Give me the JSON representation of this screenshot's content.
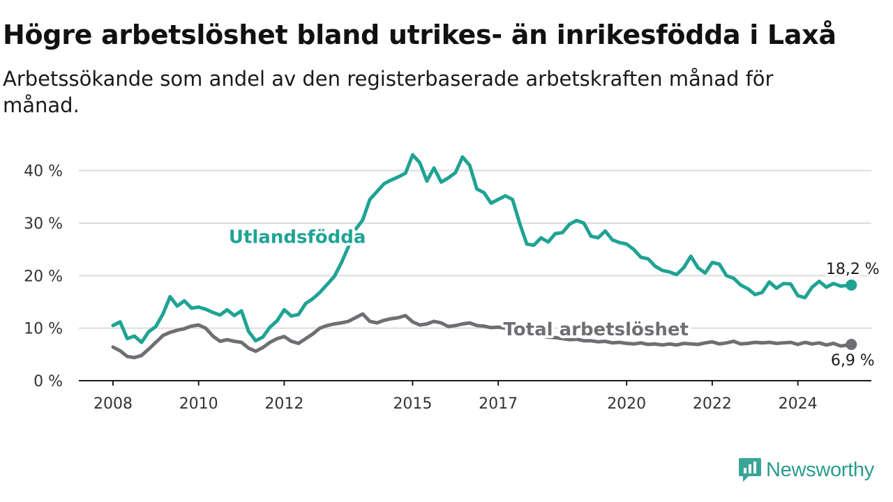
{
  "header": {
    "title": "Högre arbetslöshet bland utrikes- än inrikesfödda i Laxå",
    "subtitle": "Arbetssökande som andel av den registerbaserade arbetskraften månad för månad."
  },
  "brand": {
    "name": "Newsworthy",
    "color": "#2a9c8c"
  },
  "chart_data": {
    "type": "line",
    "x_label": "",
    "y_label": "",
    "xlim": [
      "2008-01",
      "2025-04"
    ],
    "ylim": [
      0,
      45
    ],
    "y_ticks": [
      0,
      10,
      20,
      30,
      40
    ],
    "y_tick_labels": [
      "0 %",
      "10 %",
      "20 %",
      "30 %",
      "40 %"
    ],
    "x_ticks": [
      "2008-01",
      "2010-01",
      "2012-01",
      "2015-01",
      "2017-01",
      "2020-01",
      "2022-01",
      "2024-01"
    ],
    "x_tick_labels": [
      "2008",
      "2010",
      "2012",
      "2015",
      "2017",
      "2020",
      "2022",
      "2024"
    ],
    "grid": "horizontal",
    "series": [
      {
        "name": "Utlandsfödda",
        "color": "#1fa394",
        "label_at": {
          "x": "2012-05",
          "y": 26.2
        },
        "last_value_label": "18,2 %",
        "points": [
          [
            "2008-01",
            10.5
          ],
          [
            "2008-03",
            11.2
          ],
          [
            "2008-05",
            8.0
          ],
          [
            "2008-07",
            8.5
          ],
          [
            "2008-09",
            7.3
          ],
          [
            "2008-11",
            9.3
          ],
          [
            "2009-01",
            10.3
          ],
          [
            "2009-03",
            12.7
          ],
          [
            "2009-05",
            16.0
          ],
          [
            "2009-07",
            14.2
          ],
          [
            "2009-09",
            15.2
          ],
          [
            "2009-11",
            13.8
          ],
          [
            "2010-01",
            14.0
          ],
          [
            "2010-03",
            13.6
          ],
          [
            "2010-05",
            13.0
          ],
          [
            "2010-07",
            12.5
          ],
          [
            "2010-09",
            13.5
          ],
          [
            "2010-11",
            12.4
          ],
          [
            "2011-01",
            13.3
          ],
          [
            "2011-03",
            9.4
          ],
          [
            "2011-05",
            7.6
          ],
          [
            "2011-07",
            8.3
          ],
          [
            "2011-09",
            10.2
          ],
          [
            "2011-11",
            11.4
          ],
          [
            "2012-01",
            13.5
          ],
          [
            "2012-03",
            12.3
          ],
          [
            "2012-05",
            12.6
          ],
          [
            "2012-07",
            14.7
          ],
          [
            "2012-09",
            15.6
          ],
          [
            "2012-11",
            16.8
          ],
          [
            "2013-01",
            18.3
          ],
          [
            "2013-03",
            19.8
          ],
          [
            "2013-05",
            22.4
          ],
          [
            "2013-07",
            25.5
          ],
          [
            "2013-09",
            28.8
          ],
          [
            "2013-11",
            30.6
          ],
          [
            "2014-01",
            34.5
          ],
          [
            "2014-03",
            36.0
          ],
          [
            "2014-05",
            37.5
          ],
          [
            "2014-07",
            38.2
          ],
          [
            "2014-09",
            38.8
          ],
          [
            "2014-11",
            39.5
          ],
          [
            "2015-01",
            43.0
          ],
          [
            "2015-03",
            41.5
          ],
          [
            "2015-05",
            38.0
          ],
          [
            "2015-07",
            40.5
          ],
          [
            "2015-09",
            37.8
          ],
          [
            "2015-11",
            38.6
          ],
          [
            "2016-01",
            39.6
          ],
          [
            "2016-03",
            42.6
          ],
          [
            "2016-05",
            41.0
          ],
          [
            "2016-07",
            36.5
          ],
          [
            "2016-09",
            35.8
          ],
          [
            "2016-11",
            33.8
          ],
          [
            "2017-01",
            34.5
          ],
          [
            "2017-03",
            35.2
          ],
          [
            "2017-05",
            34.5
          ],
          [
            "2017-07",
            30.0
          ],
          [
            "2017-09",
            26.0
          ],
          [
            "2017-11",
            25.8
          ],
          [
            "2018-01",
            27.2
          ],
          [
            "2018-03",
            26.4
          ],
          [
            "2018-05",
            28.0
          ],
          [
            "2018-07",
            28.2
          ],
          [
            "2018-09",
            29.8
          ],
          [
            "2018-11",
            30.5
          ],
          [
            "2019-01",
            30.0
          ],
          [
            "2019-03",
            27.5
          ],
          [
            "2019-05",
            27.2
          ],
          [
            "2019-07",
            28.5
          ],
          [
            "2019-09",
            26.8
          ],
          [
            "2019-11",
            26.3
          ],
          [
            "2020-01",
            26.0
          ],
          [
            "2020-03",
            25.0
          ],
          [
            "2020-05",
            23.5
          ],
          [
            "2020-07",
            23.2
          ],
          [
            "2020-09",
            21.8
          ],
          [
            "2020-11",
            21.0
          ],
          [
            "2021-01",
            20.7
          ],
          [
            "2021-03",
            20.2
          ],
          [
            "2021-05",
            21.5
          ],
          [
            "2021-07",
            23.7
          ],
          [
            "2021-09",
            21.5
          ],
          [
            "2021-11",
            20.5
          ],
          [
            "2022-01",
            22.5
          ],
          [
            "2022-03",
            22.2
          ],
          [
            "2022-05",
            20.0
          ],
          [
            "2022-07",
            19.5
          ],
          [
            "2022-09",
            18.2
          ],
          [
            "2022-11",
            17.5
          ],
          [
            "2023-01",
            16.4
          ],
          [
            "2023-03",
            16.8
          ],
          [
            "2023-05",
            18.8
          ],
          [
            "2023-07",
            17.6
          ],
          [
            "2023-09",
            18.5
          ],
          [
            "2023-11",
            18.4
          ],
          [
            "2024-01",
            16.2
          ],
          [
            "2024-03",
            15.8
          ],
          [
            "2024-05",
            17.8
          ],
          [
            "2024-07",
            18.9
          ],
          [
            "2024-09",
            17.8
          ],
          [
            "2024-11",
            18.5
          ],
          [
            "2025-01",
            18.0
          ],
          [
            "2025-04",
            18.2
          ]
        ]
      },
      {
        "name": "Total arbetslöshet",
        "color": "#6e6e73",
        "label_at": {
          "x": "2018-10",
          "y": 8.6
        },
        "last_value_label": "6,9 %",
        "points": [
          [
            "2008-01",
            6.4
          ],
          [
            "2008-03",
            5.7
          ],
          [
            "2008-05",
            4.6
          ],
          [
            "2008-07",
            4.4
          ],
          [
            "2008-09",
            4.8
          ],
          [
            "2008-11",
            6.0
          ],
          [
            "2009-01",
            7.3
          ],
          [
            "2009-03",
            8.6
          ],
          [
            "2009-05",
            9.2
          ],
          [
            "2009-07",
            9.6
          ],
          [
            "2009-09",
            9.9
          ],
          [
            "2009-11",
            10.4
          ],
          [
            "2010-01",
            10.6
          ],
          [
            "2010-03",
            10.0
          ],
          [
            "2010-05",
            8.5
          ],
          [
            "2010-07",
            7.5
          ],
          [
            "2010-09",
            7.8
          ],
          [
            "2010-11",
            7.5
          ],
          [
            "2011-01",
            7.3
          ],
          [
            "2011-03",
            6.2
          ],
          [
            "2011-05",
            5.6
          ],
          [
            "2011-07",
            6.3
          ],
          [
            "2011-09",
            7.3
          ],
          [
            "2011-11",
            8.0
          ],
          [
            "2012-01",
            8.4
          ],
          [
            "2012-03",
            7.5
          ],
          [
            "2012-05",
            7.1
          ],
          [
            "2012-07",
            8.0
          ],
          [
            "2012-09",
            8.9
          ],
          [
            "2012-11",
            10.0
          ],
          [
            "2013-01",
            10.5
          ],
          [
            "2013-03",
            10.8
          ],
          [
            "2013-05",
            11.0
          ],
          [
            "2013-07",
            11.3
          ],
          [
            "2013-09",
            12.0
          ],
          [
            "2013-11",
            12.7
          ],
          [
            "2014-01",
            11.3
          ],
          [
            "2014-03",
            11.0
          ],
          [
            "2014-05",
            11.5
          ],
          [
            "2014-07",
            11.8
          ],
          [
            "2014-09",
            12.0
          ],
          [
            "2014-11",
            12.4
          ],
          [
            "2015-01",
            11.2
          ],
          [
            "2015-03",
            10.6
          ],
          [
            "2015-05",
            10.8
          ],
          [
            "2015-07",
            11.3
          ],
          [
            "2015-09",
            11.0
          ],
          [
            "2015-11",
            10.3
          ],
          [
            "2016-01",
            10.5
          ],
          [
            "2016-03",
            10.8
          ],
          [
            "2016-05",
            11.0
          ],
          [
            "2016-07",
            10.5
          ],
          [
            "2016-09",
            10.4
          ],
          [
            "2016-11",
            10.1
          ],
          [
            "2017-01",
            10.2
          ],
          [
            "2017-03",
            10.0
          ],
          [
            "2017-05",
            9.8
          ],
          [
            "2017-07",
            9.5
          ],
          [
            "2017-09",
            9.0
          ],
          [
            "2017-11",
            8.8
          ],
          [
            "2018-01",
            8.5
          ],
          [
            "2018-03",
            8.3
          ],
          [
            "2018-05",
            8.2
          ],
          [
            "2018-07",
            8.0
          ],
          [
            "2018-09",
            7.8
          ],
          [
            "2018-11",
            7.9
          ],
          [
            "2019-01",
            7.6
          ],
          [
            "2019-03",
            7.6
          ],
          [
            "2019-05",
            7.4
          ],
          [
            "2019-07",
            7.5
          ],
          [
            "2019-09",
            7.2
          ],
          [
            "2019-11",
            7.3
          ],
          [
            "2020-01",
            7.1
          ],
          [
            "2020-03",
            7.0
          ],
          [
            "2020-05",
            7.2
          ],
          [
            "2020-07",
            6.9
          ],
          [
            "2020-09",
            7.0
          ],
          [
            "2020-11",
            6.8
          ],
          [
            "2021-01",
            7.0
          ],
          [
            "2021-03",
            6.8
          ],
          [
            "2021-05",
            7.1
          ],
          [
            "2021-07",
            7.0
          ],
          [
            "2021-09",
            6.9
          ],
          [
            "2021-11",
            7.2
          ],
          [
            "2022-01",
            7.4
          ],
          [
            "2022-03",
            7.0
          ],
          [
            "2022-05",
            7.2
          ],
          [
            "2022-07",
            7.5
          ],
          [
            "2022-09",
            7.0
          ],
          [
            "2022-11",
            7.1
          ],
          [
            "2023-01",
            7.3
          ],
          [
            "2023-03",
            7.2
          ],
          [
            "2023-05",
            7.3
          ],
          [
            "2023-07",
            7.1
          ],
          [
            "2023-09",
            7.2
          ],
          [
            "2023-11",
            7.3
          ],
          [
            "2024-01",
            6.9
          ],
          [
            "2024-03",
            7.3
          ],
          [
            "2024-05",
            7.0
          ],
          [
            "2024-07",
            7.2
          ],
          [
            "2024-09",
            6.8
          ],
          [
            "2024-11",
            7.1
          ],
          [
            "2025-01",
            6.6
          ],
          [
            "2025-04",
            6.9
          ]
        ]
      }
    ]
  }
}
